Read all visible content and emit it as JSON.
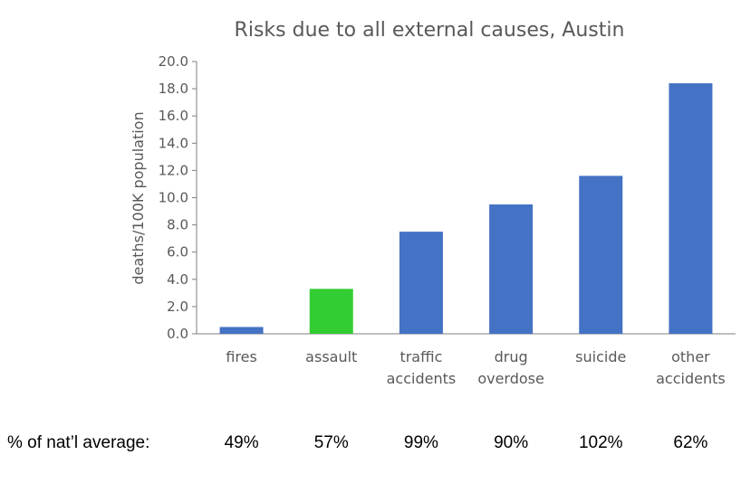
{
  "chart_data": {
    "type": "bar",
    "title": "Risks due to all external causes, Austin",
    "ylabel": "deaths/100K population",
    "xlabel": "",
    "ylim": [
      0,
      20
    ],
    "yticks": [
      "0.0",
      "2.0",
      "4.0",
      "6.0",
      "8.0",
      "10.0",
      "12.0",
      "14.0",
      "16.0",
      "18.0",
      "20.0"
    ],
    "grid": false,
    "categories": [
      [
        "fires"
      ],
      [
        "assault"
      ],
      [
        "traffic",
        "accidents"
      ],
      [
        "drug",
        "overdose"
      ],
      [
        "suicide"
      ],
      [
        "other",
        "accidents"
      ]
    ],
    "values": [
      0.5,
      3.3,
      7.5,
      9.5,
      11.6,
      18.4
    ],
    "bar_colors": [
      "#4472C4",
      "#33CC33",
      "#4472C4",
      "#4472C4",
      "#4472C4",
      "#4472C4"
    ],
    "footer_label": "% of nat’l average:",
    "footer_values": [
      "49%",
      "57%",
      "99%",
      "90%",
      "102%",
      "62%"
    ]
  }
}
